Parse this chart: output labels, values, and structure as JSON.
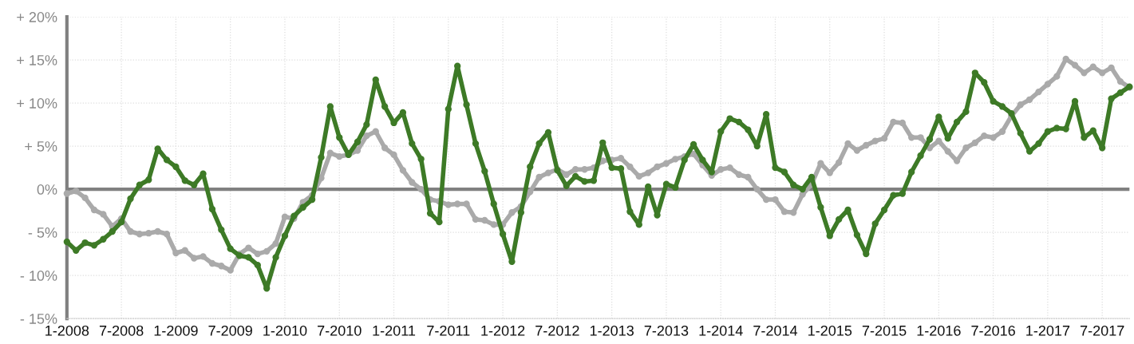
{
  "chart_data": {
    "type": "line",
    "x": [
      "2008-01",
      "2008-02",
      "2008-03",
      "2008-04",
      "2008-05",
      "2008-06",
      "2008-07",
      "2008-08",
      "2008-09",
      "2008-10",
      "2008-11",
      "2008-12",
      "2009-01",
      "2009-02",
      "2009-03",
      "2009-04",
      "2009-05",
      "2009-06",
      "2009-07",
      "2009-08",
      "2009-09",
      "2009-10",
      "2009-11",
      "2009-12",
      "2010-01",
      "2010-02",
      "2010-03",
      "2010-04",
      "2010-05",
      "2010-06",
      "2010-07",
      "2010-08",
      "2010-09",
      "2010-10",
      "2010-11",
      "2010-12",
      "2011-01",
      "2011-02",
      "2011-03",
      "2011-04",
      "2011-05",
      "2011-06",
      "2011-07",
      "2011-08",
      "2011-09",
      "2011-10",
      "2011-11",
      "2011-12",
      "2012-01",
      "2012-02",
      "2012-03",
      "2012-04",
      "2012-05",
      "2012-06",
      "2012-07",
      "2012-08",
      "2012-09",
      "2012-10",
      "2012-11",
      "2012-12",
      "2013-01",
      "2013-02",
      "2013-03",
      "2013-04",
      "2013-05",
      "2013-06",
      "2013-07",
      "2013-08",
      "2013-09",
      "2013-10",
      "2013-11",
      "2013-12",
      "2014-01",
      "2014-02",
      "2014-03",
      "2014-04",
      "2014-05",
      "2014-06",
      "2014-07",
      "2014-08",
      "2014-09",
      "2014-10",
      "2014-11",
      "2014-12",
      "2015-01",
      "2015-02",
      "2015-03",
      "2015-04",
      "2015-05",
      "2015-06",
      "2015-07",
      "2015-08",
      "2015-09",
      "2015-10",
      "2015-11",
      "2015-12",
      "2016-01",
      "2016-02",
      "2016-03",
      "2016-04",
      "2016-05",
      "2016-06",
      "2016-07",
      "2016-08",
      "2016-09",
      "2016-10",
      "2016-11",
      "2016-12",
      "2017-01",
      "2017-02",
      "2017-03",
      "2017-04",
      "2017-05",
      "2017-06",
      "2017-07",
      "2017-08",
      "2017-09",
      "2017-10"
    ],
    "series": [
      {
        "color": "#aaaaaa",
        "values": [
          -0.5,
          -0.2,
          -1.0,
          -2.4,
          -2.9,
          -4.3,
          -3.4,
          -4.9,
          -5.2,
          -5.1,
          -4.9,
          -5.2,
          -7.4,
          -7.1,
          -8.0,
          -7.8,
          -8.6,
          -8.9,
          -9.4,
          -7.5,
          -6.8,
          -7.5,
          -7.2,
          -6.3,
          -3.2,
          -3.4,
          -1.5,
          -0.7,
          1.3,
          4.2,
          3.8,
          4.0,
          4.5,
          6.2,
          6.7,
          4.8,
          4.0,
          2.2,
          0.8,
          0.0,
          -1.2,
          -1.4,
          -1.8,
          -1.7,
          -1.7,
          -3.5,
          -3.6,
          -4.1,
          -4.1,
          -2.7,
          -2.0,
          -0.3,
          1.4,
          1.9,
          2.3,
          1.7,
          2.3,
          2.3,
          2.5,
          3.3,
          3.4,
          3.6,
          2.6,
          1.5,
          1.9,
          2.6,
          3.0,
          3.5,
          3.8,
          4.1,
          2.8,
          1.6,
          2.3,
          2.5,
          1.7,
          1.4,
          0.0,
          -1.2,
          -1.2,
          -2.6,
          -2.7,
          -0.6,
          0.6,
          3.0,
          1.9,
          3.1,
          5.3,
          4.5,
          5.1,
          5.6,
          5.9,
          7.8,
          7.7,
          6.0,
          6.0,
          4.8,
          5.6,
          4.4,
          3.3,
          4.8,
          5.4,
          6.2,
          6.0,
          6.7,
          8.5,
          9.8,
          10.4,
          11.3,
          12.2,
          13.1,
          15.1,
          14.4,
          13.5,
          14.2,
          13.5,
          14.1,
          12.5,
          11.8
        ]
      },
      {
        "color": "#3d7a26",
        "values": [
          -6.1,
          -7.1,
          -6.2,
          -6.5,
          -5.8,
          -4.9,
          -3.8,
          -1.1,
          0.5,
          1.1,
          4.7,
          3.4,
          2.6,
          1.0,
          0.5,
          1.8,
          -2.3,
          -4.7,
          -6.9,
          -7.7,
          -7.9,
          -8.8,
          -11.5,
          -7.9,
          -5.4,
          -3.1,
          -2.1,
          -1.2,
          3.7,
          9.6,
          6.0,
          4.0,
          5.5,
          7.5,
          12.7,
          9.6,
          7.7,
          8.9,
          5.3,
          3.5,
          -2.8,
          -3.8,
          9.3,
          14.3,
          9.8,
          5.3,
          2.1,
          -1.7,
          -5.2,
          -8.4,
          -2.7,
          2.6,
          5.3,
          6.6,
          2.2,
          0.4,
          1.5,
          0.9,
          1.0,
          5.4,
          2.5,
          2.4,
          -2.6,
          -4.1,
          0.3,
          -3.0,
          0.6,
          0.2,
          3.4,
          5.2,
          3.4,
          2.0,
          6.7,
          8.2,
          7.8,
          6.9,
          5.0,
          8.7,
          2.5,
          2.0,
          0.5,
          0.0,
          1.4,
          -2.1,
          -5.4,
          -3.5,
          -2.4,
          -5.3,
          -7.5,
          -4.0,
          -2.4,
          -0.7,
          -0.5,
          2.0,
          3.9,
          5.8,
          8.4,
          5.9,
          7.8,
          9.0,
          13.5,
          12.4,
          10.2,
          9.6,
          8.8,
          6.5,
          4.4,
          5.3,
          6.7,
          7.1,
          7.0,
          10.2,
          6.0,
          6.8,
          4.8,
          10.5,
          11.2,
          11.9
        ]
      }
    ],
    "xlim": [
      "2008-01",
      "2017-10"
    ],
    "xticks": [
      {
        "value": "2008-01",
        "label": "1-2008"
      },
      {
        "value": "2008-07",
        "label": "7-2008"
      },
      {
        "value": "2009-01",
        "label": "1-2009"
      },
      {
        "value": "2009-07",
        "label": "7-2009"
      },
      {
        "value": "2010-01",
        "label": "1-2010"
      },
      {
        "value": "2010-07",
        "label": "7-2010"
      },
      {
        "value": "2011-01",
        "label": "1-2011"
      },
      {
        "value": "2011-07",
        "label": "7-2011"
      },
      {
        "value": "2012-01",
        "label": "1-2012"
      },
      {
        "value": "2012-07",
        "label": "7-2012"
      },
      {
        "value": "2013-01",
        "label": "1-2013"
      },
      {
        "value": "2013-07",
        "label": "7-2013"
      },
      {
        "value": "2014-01",
        "label": "1-2014"
      },
      {
        "value": "2014-07",
        "label": "7-2014"
      },
      {
        "value": "2015-01",
        "label": "1-2015"
      },
      {
        "value": "2015-07",
        "label": "7-2015"
      },
      {
        "value": "2016-01",
        "label": "1-2016"
      },
      {
        "value": "2016-07",
        "label": "7-2016"
      },
      {
        "value": "2017-01",
        "label": "1-2017"
      },
      {
        "value": "2017-07",
        "label": "7-2017"
      }
    ],
    "ylim": [
      -15,
      20
    ],
    "yticks": [
      {
        "value": -15,
        "label": "- 15%"
      },
      {
        "value": -10,
        "label": "- 10%"
      },
      {
        "value": -5,
        "label": "- 5%"
      },
      {
        "value": 0,
        "label": "0%"
      },
      {
        "value": 5,
        "label": "+ 5%"
      },
      {
        "value": 10,
        "label": "+ 10%"
      },
      {
        "value": 15,
        "label": "+ 15%"
      },
      {
        "value": 20,
        "label": "+ 20%"
      }
    ],
    "ref_lines": [
      {
        "axis": "y",
        "value": 0,
        "color": "#808080"
      }
    ],
    "grid": true,
    "marker": "circle",
    "line_style": "solid"
  }
}
